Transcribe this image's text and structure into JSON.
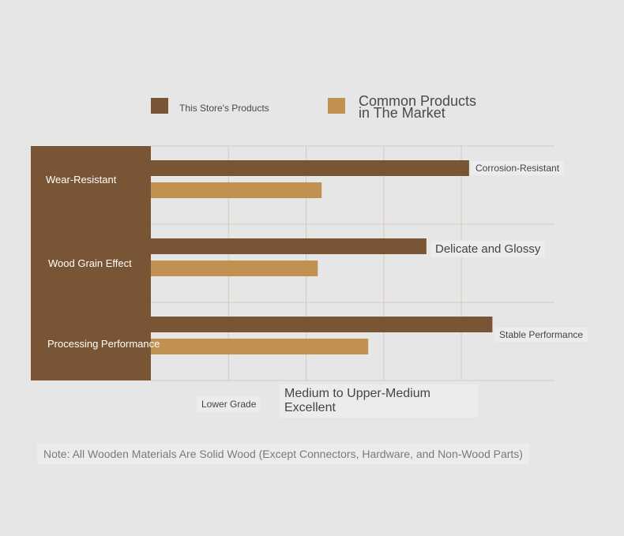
{
  "colors": {
    "background": "#e6e6e6",
    "store": "#7a5535",
    "common": "#c09150",
    "grid": "#d8c8bc"
  },
  "legend": {
    "store_label": "This Store's Products",
    "common_label": "Common Products\nin The Market"
  },
  "chart_data": {
    "type": "bar",
    "orientation": "horizontal",
    "categories": [
      "Wear-Resistant",
      "Wood Grain Effect",
      "Processing Performance"
    ],
    "series": [
      {
        "name": "This Store's Products",
        "values": [
          4.1,
          3.55,
          4.4
        ]
      },
      {
        "name": "Common Products in The Market",
        "values": [
          2.2,
          2.15,
          2.8
        ]
      }
    ],
    "value_labels": [
      "Corrosion-Resistant",
      "Delicate and Glossy",
      "Stable Performance"
    ],
    "x_axis_labels": [
      "Lower Grade",
      "Medium to Upper-Medium\nExcellent"
    ],
    "xlim": [
      0,
      5.2
    ],
    "grid": true,
    "legend_position": "top"
  },
  "note": "Note: All Wooden Materials Are Solid Wood (Except Connectors, Hardware, and Non-Wood Parts)"
}
